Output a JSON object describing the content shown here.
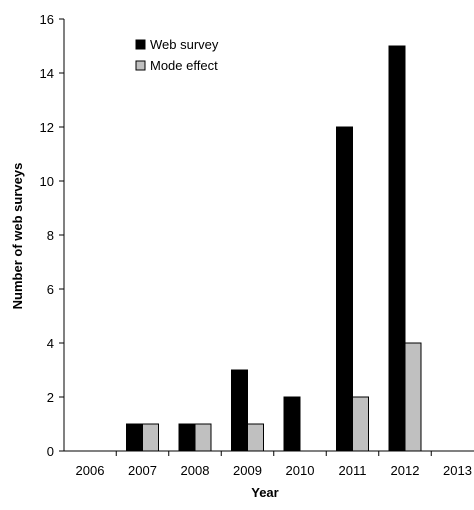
{
  "chart_data": {
    "type": "bar",
    "categories": [
      "2006",
      "2007",
      "2008",
      "2009",
      "2010",
      "2011",
      "2012",
      "2013"
    ],
    "series": [
      {
        "name": "Web survey",
        "values": [
          0,
          1,
          1,
          3,
          2,
          12,
          15,
          0
        ],
        "color": "#000000"
      },
      {
        "name": "Mode effect",
        "values": [
          0,
          1,
          1,
          1,
          0,
          2,
          4,
          0
        ],
        "color": "#c0c0c0"
      }
    ],
    "xlabel": "Year",
    "ylabel": "Number of web surveys",
    "ylim": [
      0,
      16
    ],
    "yticks": [
      "0",
      "2",
      "4",
      "6",
      "8",
      "10",
      "12",
      "14",
      "16"
    ],
    "grid": false,
    "legend": "top-left"
  }
}
